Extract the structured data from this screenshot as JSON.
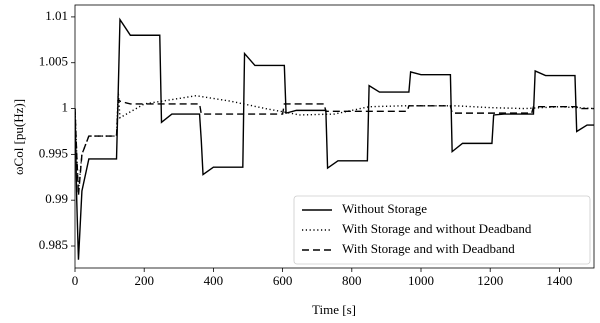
{
  "chart_data": {
    "type": "line",
    "xlabel": "Time [s]",
    "ylabel": "ωCol [pu(Hz)]",
    "xlim": [
      0,
      1500
    ],
    "ylim": [
      0.9826,
      1.0113
    ],
    "xticks": [
      0,
      200,
      400,
      600,
      800,
      1000,
      1200,
      1400
    ],
    "yticks": [
      0.985,
      0.99,
      0.995,
      1,
      1.005,
      1.01
    ],
    "legend": "lower right",
    "series": [
      {
        "name": "Without Storage",
        "color": "#000000",
        "linestyle": "solid",
        "x": [
          0,
          5,
          10,
          20,
          40,
          120,
          125,
          130,
          160,
          245,
          250,
          280,
          360,
          365,
          370,
          400,
          485,
          490,
          520,
          605,
          610,
          640,
          725,
          730,
          760,
          845,
          850,
          880,
          965,
          970,
          1000,
          1085,
          1090,
          1120,
          1205,
          1210,
          1240,
          1325,
          1330,
          1360,
          1445,
          1450,
          1480,
          1500
        ],
        "values": [
          1.0,
          0.99,
          0.9835,
          0.991,
          0.9945,
          0.9945,
          1.002,
          1.0097,
          1.008,
          1.008,
          0.9985,
          0.9994,
          0.9994,
          0.9965,
          0.9928,
          0.9936,
          0.9936,
          1.006,
          1.0047,
          1.0047,
          0.9995,
          0.9998,
          0.9998,
          0.9935,
          0.9943,
          0.9943,
          1.0025,
          1.0018,
          1.0018,
          1.004,
          1.0037,
          1.0037,
          0.9953,
          0.9962,
          0.9962,
          0.9993,
          0.9994,
          0.9994,
          1.0041,
          1.0036,
          1.0036,
          0.9975,
          0.9982,
          0.9982
        ]
      },
      {
        "name": "With Storage and without Deadband",
        "color": "#000000",
        "linestyle": "dotted",
        "x": [
          0,
          5,
          10,
          20,
          40,
          120,
          125,
          130,
          200,
          350,
          450,
          550,
          650,
          750,
          850,
          950,
          1100,
          1200,
          1300,
          1400,
          1500
        ],
        "values": [
          1.0,
          0.995,
          0.991,
          0.995,
          0.997,
          0.997,
          1.0018,
          0.999,
          1.0005,
          1.0014,
          1.0008,
          1.0,
          0.9993,
          0.9994,
          1.0002,
          1.0003,
          1.0003,
          1.0001,
          1.0,
          1.0002,
          1.0
        ]
      },
      {
        "name": "With Storage and with Deadband",
        "color": "#000000",
        "linestyle": "dashed",
        "x": [
          0,
          5,
          10,
          20,
          40,
          120,
          125,
          130,
          160,
          360,
          365,
          600,
          605,
          720,
          725,
          960,
          965,
          1085,
          1090,
          1320,
          1325,
          1450,
          1455,
          1500
        ],
        "values": [
          1.0,
          0.995,
          0.9905,
          0.995,
          0.997,
          0.997,
          1.001,
          1.0008,
          1.0005,
          1.0005,
          0.9994,
          0.9994,
          1.0005,
          1.0005,
          0.9997,
          0.9997,
          1.0003,
          1.0003,
          0.9995,
          0.9995,
          1.0002,
          1.0002,
          1.0,
          1.0
        ]
      }
    ]
  }
}
